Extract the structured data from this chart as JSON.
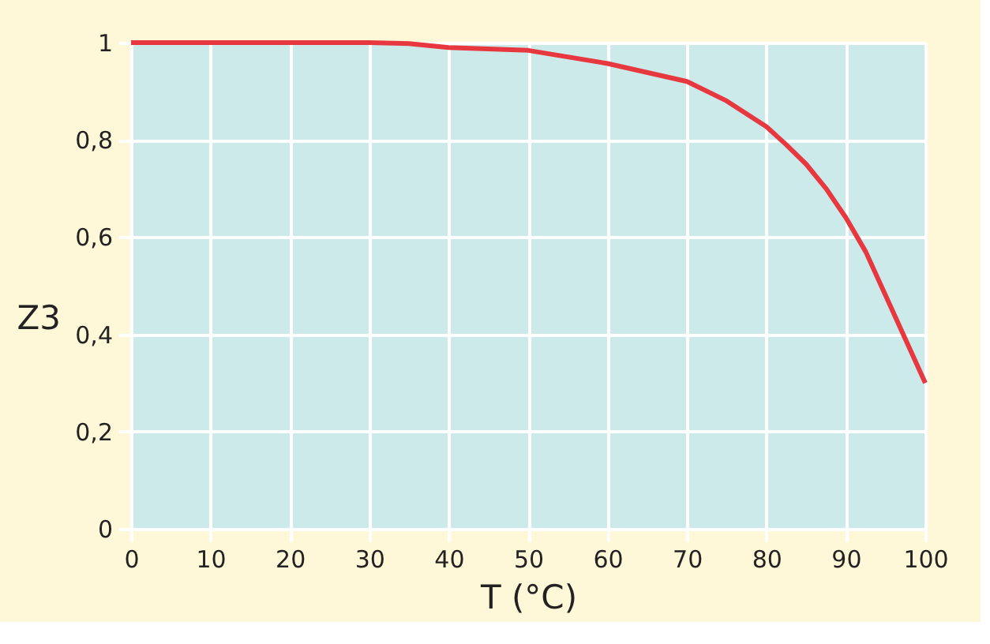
{
  "chart_data": {
    "type": "line",
    "xlabel": "T (°C)",
    "ylabel": "Z3",
    "x": [
      0,
      10,
      20,
      30,
      35,
      40,
      50,
      60,
      70,
      75,
      80,
      82.5,
      85,
      87.5,
      90,
      92.5,
      95,
      97.5,
      100
    ],
    "series": [
      {
        "color": "#e8383f",
        "values": [
          1,
          1,
          1,
          1,
          0.998,
          0.99,
          0.984,
          0.957,
          0.92,
          0.88,
          0.827,
          0.79,
          0.75,
          0.7,
          0.64,
          0.57,
          0.48,
          0.39,
          0.3
        ]
      }
    ],
    "xlim": [
      0,
      100
    ],
    "xticks": [
      0,
      10,
      20,
      30,
      40,
      50,
      60,
      70,
      80,
      90,
      100
    ],
    "ylim": [
      0,
      1
    ],
    "yticks": [
      0,
      {
        "value": 0.2,
        "label": "0,2"
      },
      {
        "value": 0.4,
        "label": "0,4"
      },
      {
        "value": 0.6,
        "label": "0,6"
      },
      {
        "value": 0.8,
        "label": "0,8"
      },
      1
    ],
    "grid": true,
    "marker": "none",
    "line_style": "solid"
  }
}
